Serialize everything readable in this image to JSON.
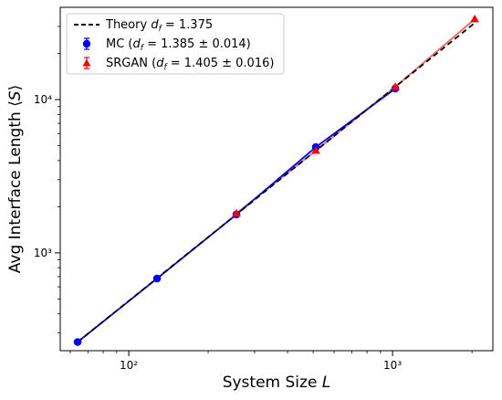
{
  "chart_data": {
    "type": "line",
    "xscale": "log",
    "yscale": "log",
    "xlabel": "System Size L",
    "ylabel": "Avg Interface Length ⟨S⟩",
    "xlim": [
      55,
      2400
    ],
    "ylim": [
      230,
      40000
    ],
    "x_ticks": [
      {
        "value": 100,
        "label": "10²"
      },
      {
        "value": 1000,
        "label": "10³"
      }
    ],
    "y_ticks": [
      {
        "value": 1000,
        "label": "10³"
      },
      {
        "value": 10000,
        "label": "10⁴"
      }
    ],
    "legend_position": "top-left",
    "series": [
      {
        "name": "Theory d_f = 1.375",
        "legend": "Theory d_f = 1.375",
        "style": "dashed",
        "color": "#000000",
        "x": [
          64,
          2048
        ],
        "y": [
          262,
          31600
        ]
      },
      {
        "name": "MC (d_f = 1.385 ± 0.014)",
        "legend": "MC (d_f = 1.385 ± 0.014)",
        "style": "solid-marker-circle",
        "color": "#0000ee",
        "x": [
          64,
          128,
          256,
          512,
          1024
        ],
        "y": [
          262,
          680,
          1780,
          4900,
          11800
        ]
      },
      {
        "name": "SRGAN (d_f = 1.405 ± 0.016)",
        "legend": "SRGAN (d_f = 1.405 ± 0.016)",
        "style": "solid-marker-triangle",
        "color": "#ff0000",
        "line_color": "#f07070",
        "x": [
          256,
          512,
          1024,
          2048
        ],
        "y": [
          1810,
          4650,
          12100,
          33500
        ]
      }
    ]
  }
}
